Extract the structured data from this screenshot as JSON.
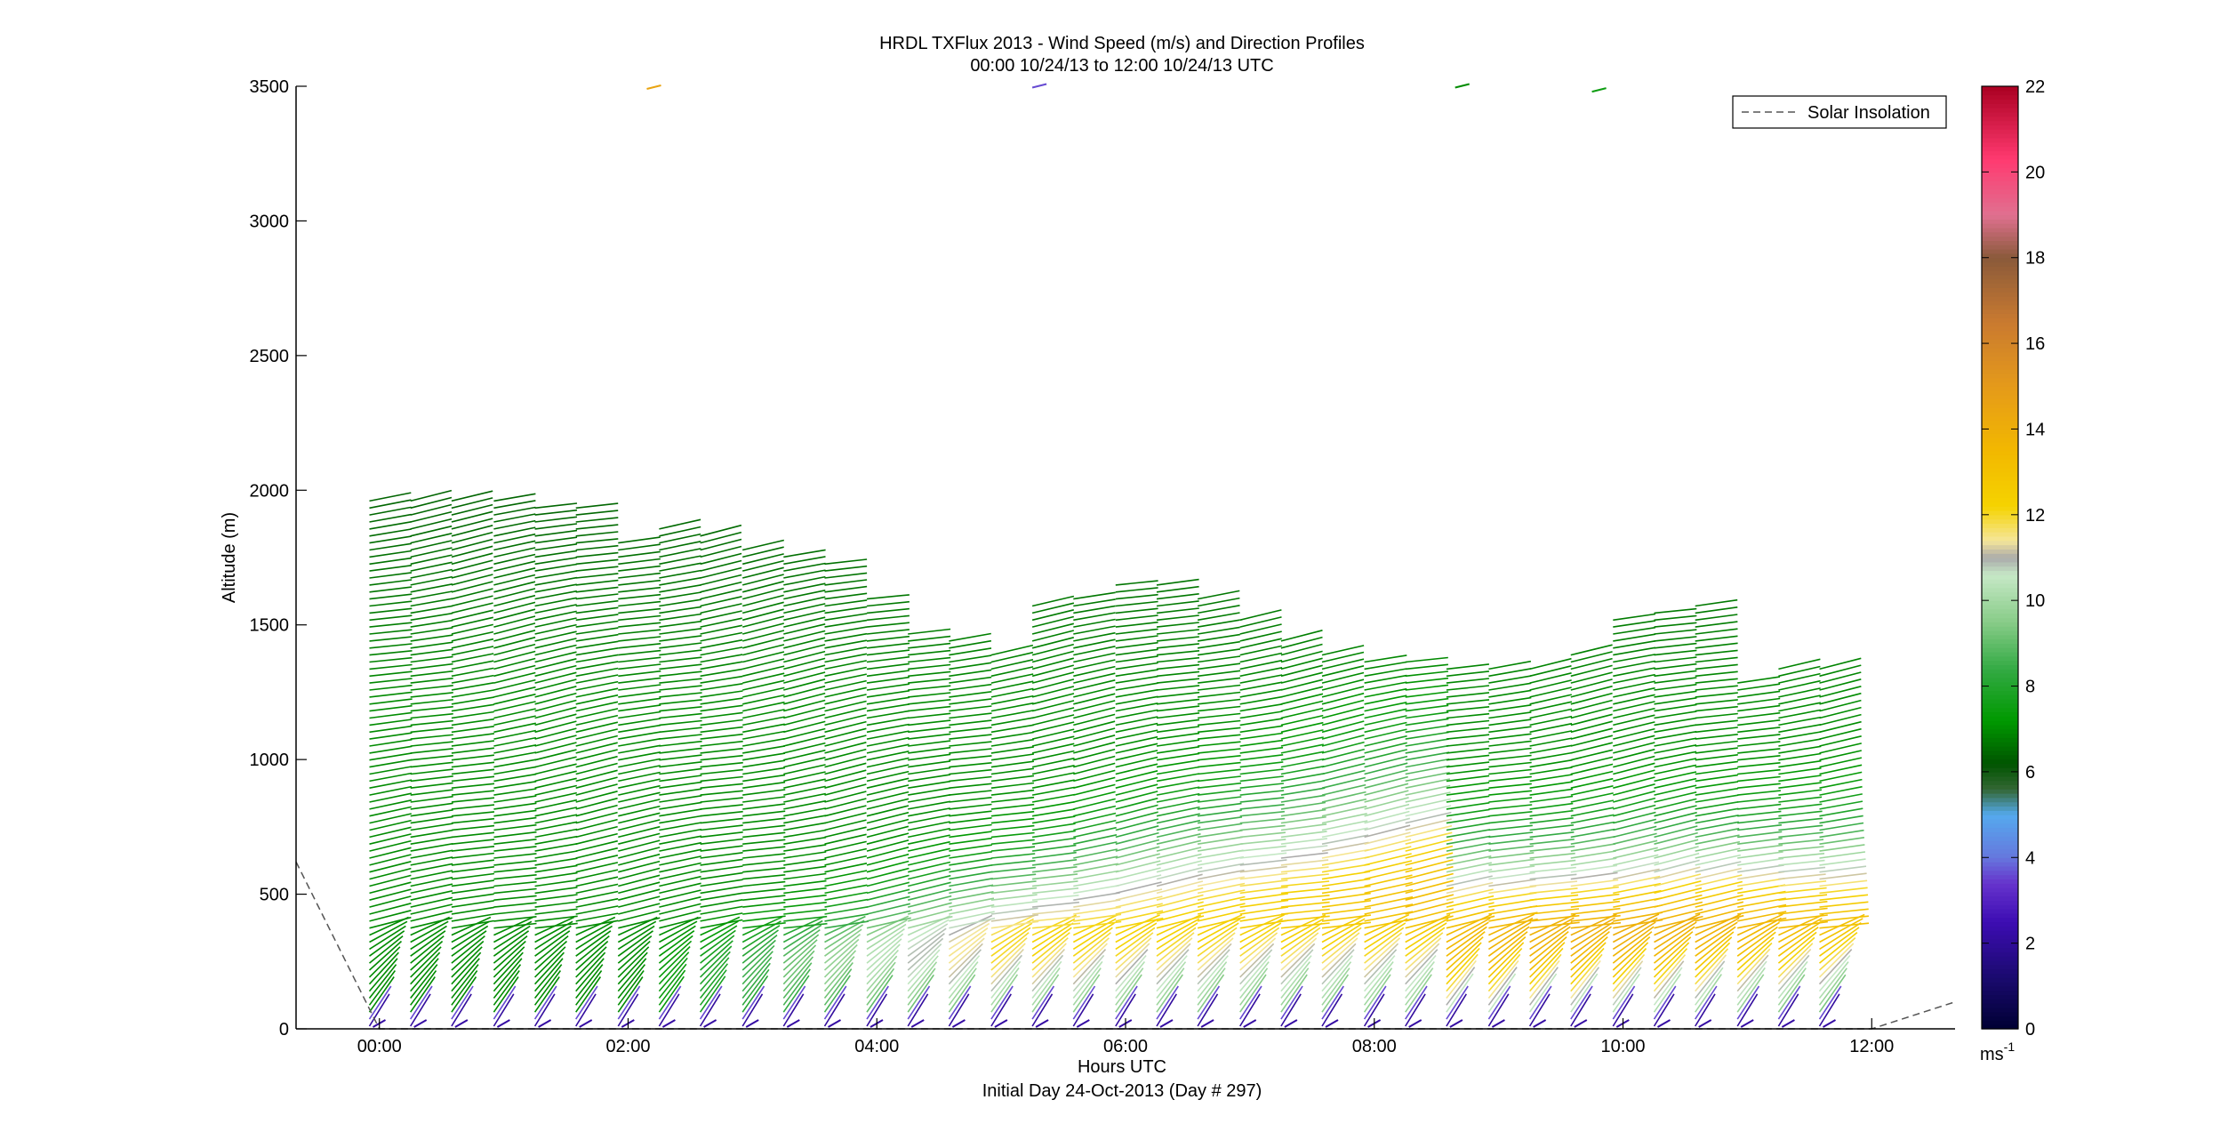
{
  "chart_data": {
    "type": "wind-profile",
    "title": "HRDL TXFlux 2013 - Wind Speed (m/s) and Direction Profiles",
    "subtitle": "00:00 10/24/13 to 12:00 10/24/13  UTC",
    "xlabel": "Hours UTC",
    "xlabel2": "Initial Day 24-Oct-2013 (Day # 297)",
    "ylabel": "Altitude (m)",
    "xlim_hours": [
      -0.67,
      12.67
    ],
    "ylim": [
      0,
      3500
    ],
    "x_ticks": [
      {
        "value": 0,
        "label": "00:00"
      },
      {
        "value": 2,
        "label": "02:00"
      },
      {
        "value": 4,
        "label": "04:00"
      },
      {
        "value": 6,
        "label": "06:00"
      },
      {
        "value": 8,
        "label": "08:00"
      },
      {
        "value": 10,
        "label": "10:00"
      },
      {
        "value": 12,
        "label": "12:00"
      }
    ],
    "y_ticks": [
      {
        "value": 0,
        "label": "0"
      },
      {
        "value": 500,
        "label": "500"
      },
      {
        "value": 1000,
        "label": "1000"
      },
      {
        "value": 1500,
        "label": "1500"
      },
      {
        "value": 2000,
        "label": "2000"
      },
      {
        "value": 2500,
        "label": "2500"
      },
      {
        "value": 3000,
        "label": "3000"
      },
      {
        "value": 3500,
        "label": "3500"
      }
    ],
    "legend": {
      "entries": [
        "Solar Insolation"
      ],
      "placement": "top-right",
      "line_style": "dashed"
    },
    "colorbar": {
      "range": [
        0,
        22
      ],
      "ticks": [
        {
          "value": 0,
          "label": "0"
        },
        {
          "value": 2,
          "label": "2"
        },
        {
          "value": 4,
          "label": "4"
        },
        {
          "value": 6,
          "label": "6"
        },
        {
          "value": 8,
          "label": "8"
        },
        {
          "value": 10,
          "label": "10"
        },
        {
          "value": 12,
          "label": "12"
        },
        {
          "value": 14,
          "label": "14"
        },
        {
          "value": 16,
          "label": "16"
        },
        {
          "value": 18,
          "label": "18"
        },
        {
          "value": 20,
          "label": "20"
        },
        {
          "value": 22,
          "label": "22"
        }
      ],
      "unit_base": "ms",
      "unit_exp": "-1",
      "color_stops": [
        {
          "v": 0,
          "c": "#000033"
        },
        {
          "v": 1.2,
          "c": "#1a0a6e"
        },
        {
          "v": 2.5,
          "c": "#3d0db3"
        },
        {
          "v": 3.4,
          "c": "#6633cc"
        },
        {
          "v": 4.0,
          "c": "#6677dd"
        },
        {
          "v": 5.0,
          "c": "#55aaee"
        },
        {
          "v": 5.6,
          "c": "#336633"
        },
        {
          "v": 6.2,
          "c": "#005500"
        },
        {
          "v": 7.2,
          "c": "#009900"
        },
        {
          "v": 8.4,
          "c": "#33aa44"
        },
        {
          "v": 9.5,
          "c": "#88cc88"
        },
        {
          "v": 10.6,
          "c": "#c6e8c6"
        },
        {
          "v": 11.0,
          "c": "#aaaaaa"
        },
        {
          "v": 11.4,
          "c": "#f5e69a"
        },
        {
          "v": 12.2,
          "c": "#f5d300"
        },
        {
          "v": 13.5,
          "c": "#f2b800"
        },
        {
          "v": 15.0,
          "c": "#e59a1a"
        },
        {
          "v": 16.5,
          "c": "#c97a30"
        },
        {
          "v": 18.0,
          "c": "#8a5a3a"
        },
        {
          "v": 19.0,
          "c": "#e07090"
        },
        {
          "v": 20.3,
          "c": "#ff3a70"
        },
        {
          "v": 22.0,
          "c": "#aa0022"
        }
      ]
    },
    "solar_insolation": {
      "x_hours": [
        -0.67,
        0.0,
        12.0,
        12.67
      ],
      "y": [
        620,
        0,
        0,
        100
      ]
    },
    "profiles": [
      {
        "t": -0.08,
        "top": 1960
      },
      {
        "t": 0.25,
        "top": 1980
      },
      {
        "t": 0.58,
        "top": 1960
      },
      {
        "t": 0.92,
        "top": 1960
      },
      {
        "t": 1.25,
        "top": 1940
      },
      {
        "t": 1.58,
        "top": 1950
      },
      {
        "t": 1.92,
        "top": 1820
      },
      {
        "t": 2.25,
        "top": 1860
      },
      {
        "t": 2.58,
        "top": 1840
      },
      {
        "t": 2.92,
        "top": 1800
      },
      {
        "t": 3.25,
        "top": 1760
      },
      {
        "t": 3.58,
        "top": 1740
      },
      {
        "t": 3.92,
        "top": 1600
      },
      {
        "t": 4.25,
        "top": 1470
      },
      {
        "t": 4.58,
        "top": 1460
      },
      {
        "t": 4.92,
        "top": 1410
      },
      {
        "t": 5.25,
        "top": 1570
      },
      {
        "t": 5.58,
        "top": 1620
      },
      {
        "t": 5.92,
        "top": 1660
      },
      {
        "t": 6.25,
        "top": 1670
      },
      {
        "t": 6.58,
        "top": 1600
      },
      {
        "t": 6.92,
        "top": 1540
      },
      {
        "t": 7.25,
        "top": 1440
      },
      {
        "t": 7.58,
        "top": 1390
      },
      {
        "t": 7.92,
        "top": 1380
      },
      {
        "t": 8.25,
        "top": 1370
      },
      {
        "t": 8.58,
        "top": 1340
      },
      {
        "t": 8.92,
        "top": 1360
      },
      {
        "t": 9.25,
        "top": 1350
      },
      {
        "t": 9.58,
        "top": 1410
      },
      {
        "t": 9.92,
        "top": 1540
      },
      {
        "t": 10.25,
        "top": 1560
      },
      {
        "t": 10.58,
        "top": 1580
      },
      {
        "t": 10.92,
        "top": 1300
      },
      {
        "t": 11.25,
        "top": 1340
      },
      {
        "t": 11.58,
        "top": 1360
      }
    ],
    "stray_marks": [
      {
        "t": 2.15,
        "alt": 3490,
        "speed": 14.5
      },
      {
        "t": 5.25,
        "alt": 3495,
        "speed": 3.6
      },
      {
        "t": 8.65,
        "alt": 3495,
        "speed": 7.0
      },
      {
        "t": 9.75,
        "alt": 3480,
        "speed": 7.5
      }
    ]
  }
}
